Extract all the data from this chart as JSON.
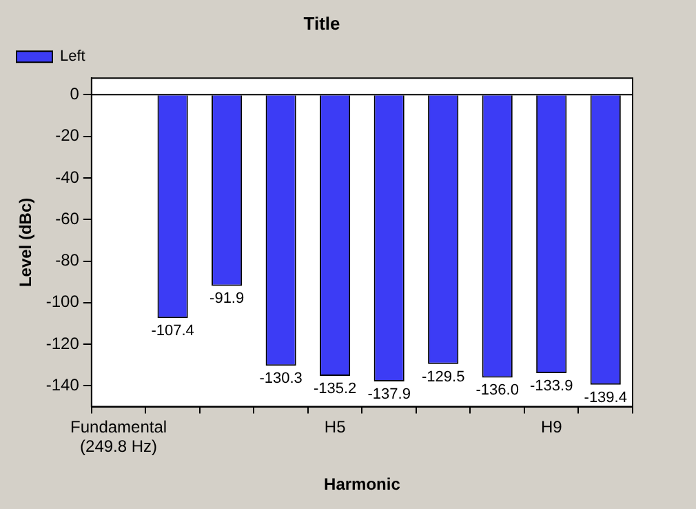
{
  "chart_data": {
    "type": "bar",
    "title": "Title",
    "xlabel": "Harmonic",
    "ylabel": "Level (dBc)",
    "categories": [
      "Fundamental\n(249.8 Hz)",
      null,
      null,
      null,
      "H5",
      null,
      null,
      null,
      "H9",
      null
    ],
    "series": [
      {
        "name": "Left",
        "color": "#3c3cf5",
        "values": [
          0,
          -107.4,
          -91.9,
          -130.3,
          -135.2,
          -137.9,
          -129.5,
          -136.0,
          -133.9,
          -139.4
        ],
        "value_labels": [
          null,
          "-107.4",
          "-91.9",
          "-130.3",
          "-135.2",
          "-137.9",
          "-129.5",
          "-136.0",
          "-133.9",
          "-139.4"
        ]
      }
    ],
    "ylim": [
      -150,
      8
    ],
    "yticks": [
      -140,
      -120,
      -100,
      -80,
      -60,
      -40,
      -20,
      0
    ],
    "ref_lines": [
      {
        "axis": "y",
        "value": 0,
        "color": "#000000"
      }
    ],
    "grid": false,
    "legend": "top left"
  }
}
